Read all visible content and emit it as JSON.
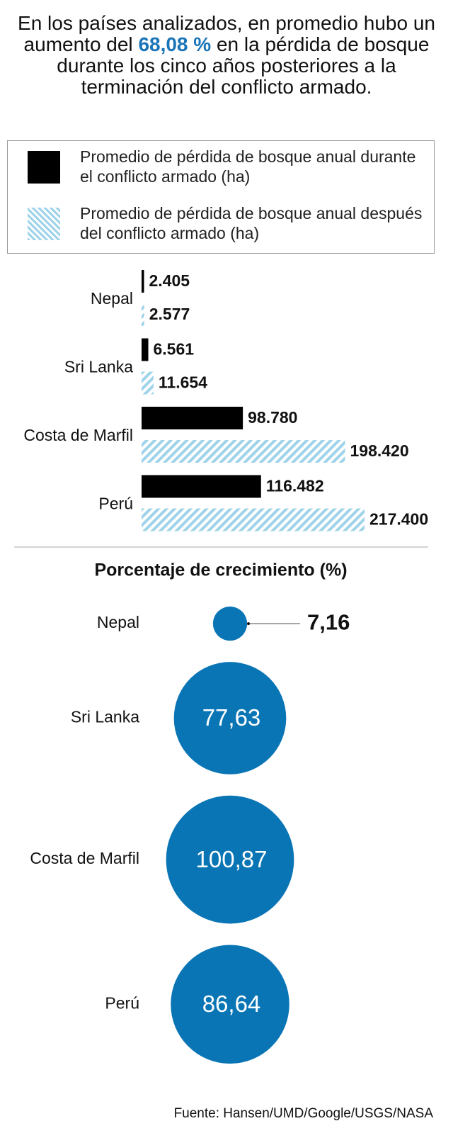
{
  "header": {
    "text_before": "En los países analizados, en promedio hubo un aumento del ",
    "highlight": "68,08 %",
    "text_after": " en la pérdida de bosque durante los cinco años posteriores a la terminación del conflicto armado."
  },
  "chart_data": [
    {
      "type": "bar",
      "orientation": "horizontal",
      "categories": [
        "Nepal",
        "Sri Lanka",
        "Costa de Marfil",
        "Perú"
      ],
      "series": [
        {
          "name": "Promedio de pérdida de bosque anual durante el conflicto armado (ha)",
          "color": "#000000",
          "pattern": "solid",
          "values": [
            2405,
            6561,
            98780,
            116482
          ],
          "value_labels": [
            "2.405",
            "6.561",
            "98.780",
            "116.482"
          ]
        },
        {
          "name": "Promedio de pérdida de bosque anual después del conflicto armado (ha)",
          "color": "#9fd3ea",
          "pattern": "hatch",
          "values": [
            2577,
            11654,
            198420,
            217400
          ],
          "value_labels": [
            "2.577",
            "11.654",
            "198.420",
            "217.400"
          ]
        }
      ]
    },
    {
      "type": "bubble",
      "title": "Porcentaje de crecimiento (%)",
      "color": "#0a75b5",
      "categories": [
        "Nepal",
        "Sri Lanka",
        "Costa de Marfil",
        "Perú"
      ],
      "values": [
        7.16,
        77.63,
        100.87,
        86.64
      ],
      "value_labels": [
        "7,16",
        "77,63",
        "100,87",
        "86,64"
      ]
    }
  ],
  "source": "Fuente: Hansen/UMD/Google/USGS/NASA"
}
